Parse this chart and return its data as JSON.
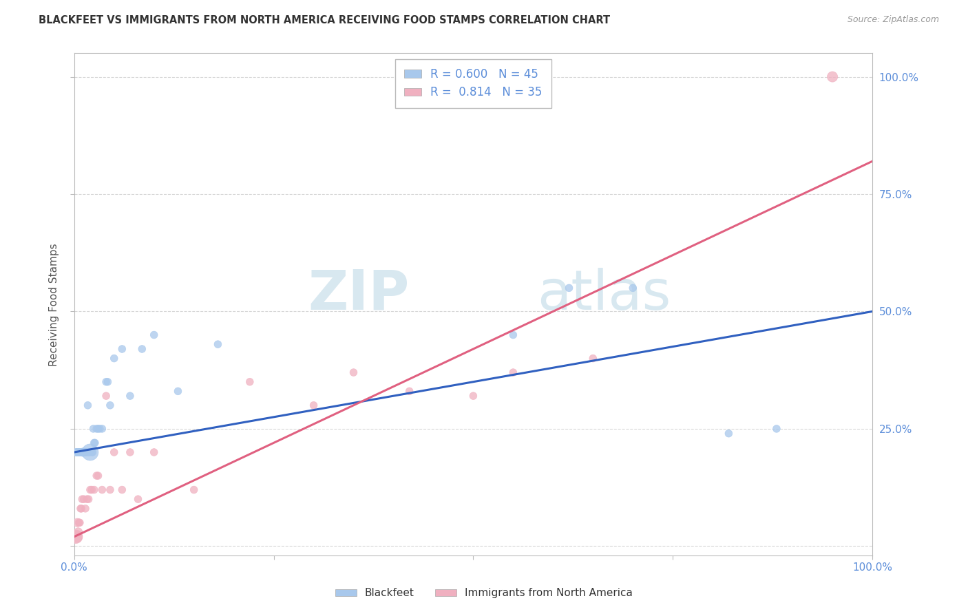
{
  "title": "BLACKFEET VS IMMIGRANTS FROM NORTH AMERICA RECEIVING FOOD STAMPS CORRELATION CHART",
  "source": "Source: ZipAtlas.com",
  "ylabel": "Receiving Food Stamps",
  "xlabel": "",
  "xlim": [
    0,
    1.0
  ],
  "ylim": [
    -0.02,
    1.05
  ],
  "blue_color": "#A8C8EC",
  "pink_color": "#F0B0C0",
  "blue_line_color": "#3060C0",
  "pink_line_color": "#E06080",
  "background_color": "#FFFFFF",
  "grid_color": "#CCCCCC",
  "watermark_zip": "ZIP",
  "watermark_atlas": "atlas",
  "blue_scatter": {
    "x": [
      0.002,
      0.003,
      0.004,
      0.005,
      0.006,
      0.007,
      0.008,
      0.008,
      0.009,
      0.01,
      0.01,
      0.011,
      0.012,
      0.013,
      0.014,
      0.015,
      0.016,
      0.017,
      0.018,
      0.019,
      0.02,
      0.022,
      0.023,
      0.024,
      0.025,
      0.026,
      0.028,
      0.03,
      0.032,
      0.035,
      0.04,
      0.042,
      0.045,
      0.05,
      0.06,
      0.07,
      0.085,
      0.1,
      0.13,
      0.18,
      0.55,
      0.62,
      0.7,
      0.82,
      0.88
    ],
    "y": [
      0.2,
      0.2,
      0.2,
      0.2,
      0.2,
      0.2,
      0.2,
      0.2,
      0.2,
      0.2,
      0.2,
      0.2,
      0.2,
      0.2,
      0.2,
      0.2,
      0.2,
      0.3,
      0.2,
      0.2,
      0.2,
      0.2,
      0.2,
      0.25,
      0.22,
      0.22,
      0.25,
      0.25,
      0.25,
      0.25,
      0.35,
      0.35,
      0.3,
      0.4,
      0.42,
      0.32,
      0.42,
      0.45,
      0.33,
      0.43,
      0.45,
      0.55,
      0.55,
      0.24,
      0.25
    ],
    "sizes": [
      60,
      60,
      60,
      60,
      60,
      60,
      60,
      60,
      60,
      60,
      60,
      80,
      60,
      60,
      60,
      60,
      60,
      60,
      60,
      60,
      300,
      60,
      60,
      60,
      60,
      60,
      60,
      60,
      60,
      60,
      60,
      60,
      60,
      60,
      60,
      60,
      60,
      60,
      60,
      60,
      60,
      60,
      60,
      60,
      60
    ]
  },
  "pink_scatter": {
    "x": [
      0.002,
      0.003,
      0.004,
      0.005,
      0.006,
      0.007,
      0.008,
      0.009,
      0.01,
      0.012,
      0.014,
      0.016,
      0.018,
      0.02,
      0.022,
      0.025,
      0.028,
      0.03,
      0.035,
      0.04,
      0.045,
      0.05,
      0.06,
      0.07,
      0.08,
      0.1,
      0.15,
      0.22,
      0.3,
      0.35,
      0.42,
      0.5,
      0.55,
      0.65,
      0.95
    ],
    "y": [
      0.02,
      0.02,
      0.05,
      0.03,
      0.05,
      0.05,
      0.08,
      0.08,
      0.1,
      0.1,
      0.08,
      0.1,
      0.1,
      0.12,
      0.12,
      0.12,
      0.15,
      0.15,
      0.12,
      0.32,
      0.12,
      0.2,
      0.12,
      0.2,
      0.1,
      0.2,
      0.12,
      0.35,
      0.3,
      0.37,
      0.33,
      0.32,
      0.37,
      0.4,
      1.0
    ],
    "sizes": [
      200,
      150,
      80,
      80,
      60,
      60,
      60,
      60,
      60,
      60,
      60,
      60,
      60,
      60,
      60,
      60,
      60,
      60,
      60,
      60,
      60,
      60,
      60,
      60,
      60,
      60,
      60,
      60,
      60,
      60,
      60,
      60,
      60,
      60,
      120
    ]
  },
  "blue_line_x0": 0.0,
  "blue_line_y0": 0.2,
  "blue_line_x1": 1.0,
  "blue_line_y1": 0.5,
  "pink_line_x0": 0.0,
  "pink_line_y0": 0.02,
  "pink_line_x1": 1.0,
  "pink_line_y1": 0.82
}
